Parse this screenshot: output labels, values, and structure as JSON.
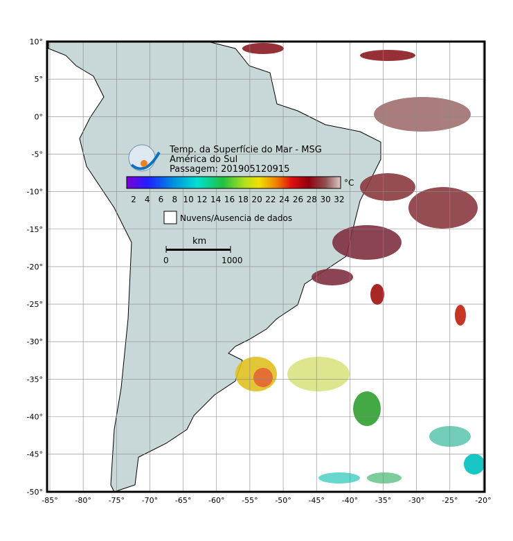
{
  "map": {
    "title": "Temp. da Superfície do Mar - MSG",
    "region": "América do Sul",
    "pass": "Passagem: 201905120915",
    "colorbar": {
      "unit": "°C",
      "ticks": [
        2,
        4,
        6,
        8,
        10,
        12,
        14,
        16,
        18,
        20,
        22,
        24,
        26,
        28,
        30,
        32
      ]
    },
    "legend": "Nuvens/Ausencia de dados",
    "scale": {
      "unit": "km",
      "start": "0",
      "end": "1000"
    },
    "lon_ticks": [
      {
        "value": -85,
        "label": "-85°"
      },
      {
        "value": -80,
        "label": "-80°"
      },
      {
        "value": -75,
        "label": "-75°"
      },
      {
        "value": -70,
        "label": "-70°"
      },
      {
        "value": -65,
        "label": "-65°"
      },
      {
        "value": -60,
        "label": "-60°"
      },
      {
        "value": -55,
        "label": "-55°"
      },
      {
        "value": -50,
        "label": "-50°"
      },
      {
        "value": -45,
        "label": "-45°"
      },
      {
        "value": -40,
        "label": "-40°"
      },
      {
        "value": -35,
        "label": "-35°"
      },
      {
        "value": -30,
        "label": "-30°"
      },
      {
        "value": -25,
        "label": "-25°"
      },
      {
        "value": -20,
        "label": "-20°"
      }
    ],
    "lat_ticks": [
      {
        "value": 10,
        "label": "10°"
      },
      {
        "value": 5,
        "label": "5°"
      },
      {
        "value": 0,
        "label": "0°"
      },
      {
        "value": -5,
        "label": "-5°"
      },
      {
        "value": -10,
        "label": "-10°"
      },
      {
        "value": -15,
        "label": "-15°"
      },
      {
        "value": -20,
        "label": "-20°"
      },
      {
        "value": -25,
        "label": "-25°"
      },
      {
        "value": -30,
        "label": "-30°"
      },
      {
        "value": -35,
        "label": "-35°"
      },
      {
        "value": -40,
        "label": "-40°"
      },
      {
        "value": -45,
        "label": "-45°"
      },
      {
        "value": -50,
        "label": "-50°"
      }
    ]
  }
}
